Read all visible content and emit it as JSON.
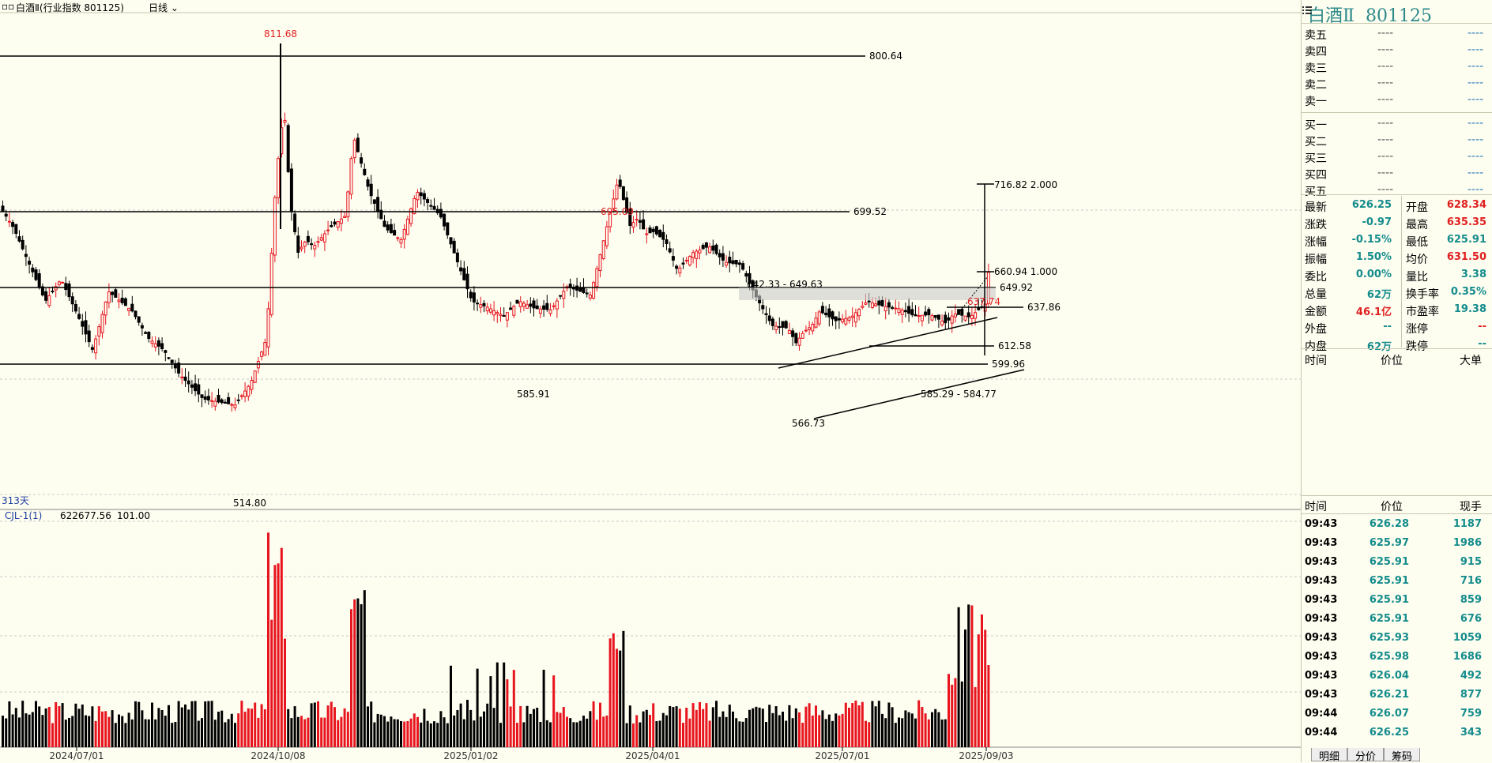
{
  "toolbar": {
    "title": "白酒Ⅱ(行业指数 801125)",
    "period": "日线"
  },
  "price_levels": [
    {
      "value": "800.64"
    },
    {
      "value": "699.52"
    },
    {
      "value": "649.92"
    },
    {
      "value": "637.86"
    },
    {
      "value": "612.58"
    },
    {
      "value": "599.96"
    }
  ],
  "annotations": {
    "high_label": "811.68",
    "low_label": "514.80",
    "peak2_label": "695.09",
    "trough1_label": "585.91",
    "trough2_label": "566.73",
    "range_label": "642.33 - 649.63",
    "trough3_label": "585.29 - 584.77",
    "fib_top": "716.82  2.000",
    "fib_mid": "660.94  1.000",
    "last_high": "637.74",
    "days_label": "313天"
  },
  "volume_indicator": {
    "name": "CJL-1(1)",
    "value1": "622677.56",
    "value2": "101.00"
  },
  "x_axis_labels": [
    "2024/07/01",
    "2024/10/08",
    "2025/01/02",
    "2025/04/01",
    "2025/07/01",
    "2025/09/03"
  ],
  "side": {
    "title": "白酒Ⅱ",
    "code": "801125",
    "asks": [
      {
        "label": "卖五",
        "price": "----",
        "vol": "----"
      },
      {
        "label": "卖四",
        "price": "----",
        "vol": "----"
      },
      {
        "label": "卖三",
        "price": "----",
        "vol": "----"
      },
      {
        "label": "卖二",
        "price": "----",
        "vol": "----"
      },
      {
        "label": "卖一",
        "price": "----",
        "vol": "----"
      }
    ],
    "bids": [
      {
        "label": "买一",
        "price": "----",
        "vol": "----"
      },
      {
        "label": "买二",
        "price": "----",
        "vol": "----"
      },
      {
        "label": "买三",
        "price": "----",
        "vol": "----"
      },
      {
        "label": "买四",
        "price": "----",
        "vol": "----"
      },
      {
        "label": "买五",
        "price": "----",
        "vol": "----"
      }
    ],
    "stats": [
      {
        "l1": "最新",
        "v1": "626.25",
        "c1": "teal",
        "l2": "开盘",
        "v2": "628.34",
        "c2": "red"
      },
      {
        "l1": "涨跌",
        "v1": "-0.97",
        "c1": "teal",
        "l2": "最高",
        "v2": "635.35",
        "c2": "red"
      },
      {
        "l1": "涨幅",
        "v1": "-0.15%",
        "c1": "teal",
        "l2": "最低",
        "v2": "625.91",
        "c2": "teal"
      },
      {
        "l1": "振幅",
        "v1": "1.50%",
        "c1": "teal",
        "l2": "均价",
        "v2": "631.50",
        "c2": "red"
      },
      {
        "l1": "委比",
        "v1": "0.00%",
        "c1": "teal",
        "l2": "量比",
        "v2": "3.38",
        "c2": "teal"
      },
      {
        "l1": "总量",
        "v1": "62万",
        "c1": "teal",
        "l2": "换手率",
        "v2": "0.35%",
        "c2": "teal"
      },
      {
        "l1": "金额",
        "v1": "46.1亿",
        "c1": "red",
        "l2": "市盈率",
        "v2": "19.38",
        "c2": "teal"
      },
      {
        "l1": "外盘",
        "v1": "--",
        "c1": "teal",
        "l2": "涨停",
        "v2": "--",
        "c2": "red"
      },
      {
        "l1": "内盘",
        "v1": "62万",
        "c1": "teal",
        "l2": "跌停",
        "v2": "--",
        "c2": "teal"
      }
    ],
    "big_header": {
      "time": "时间",
      "price": "价位",
      "big": "大单"
    },
    "tick_header": {
      "time": "时间",
      "price": "价位",
      "vol": "现手"
    },
    "ticks": [
      {
        "time": "09:43",
        "price": "626.28",
        "vol": "1187"
      },
      {
        "time": "09:43",
        "price": "625.97",
        "vol": "1986"
      },
      {
        "time": "09:43",
        "price": "625.91",
        "vol": "915"
      },
      {
        "time": "09:43",
        "price": "625.91",
        "vol": "716"
      },
      {
        "time": "09:43",
        "price": "625.91",
        "vol": "859"
      },
      {
        "time": "09:43",
        "price": "625.91",
        "vol": "676"
      },
      {
        "time": "09:43",
        "price": "625.93",
        "vol": "1059"
      },
      {
        "time": "09:43",
        "price": "625.98",
        "vol": "1686"
      },
      {
        "time": "09:43",
        "price": "626.04",
        "vol": "492"
      },
      {
        "time": "09:43",
        "price": "626.21",
        "vol": "877"
      },
      {
        "time": "09:44",
        "price": "626.07",
        "vol": "759"
      },
      {
        "time": "09:44",
        "price": "626.25",
        "vol": "343"
      }
    ],
    "tabs": [
      "明细",
      "分价",
      "筹码"
    ]
  },
  "colors": {
    "up": "#e8141e",
    "down": "#000000",
    "teal": "#148c8c",
    "bg": "#fdfdf0"
  }
}
